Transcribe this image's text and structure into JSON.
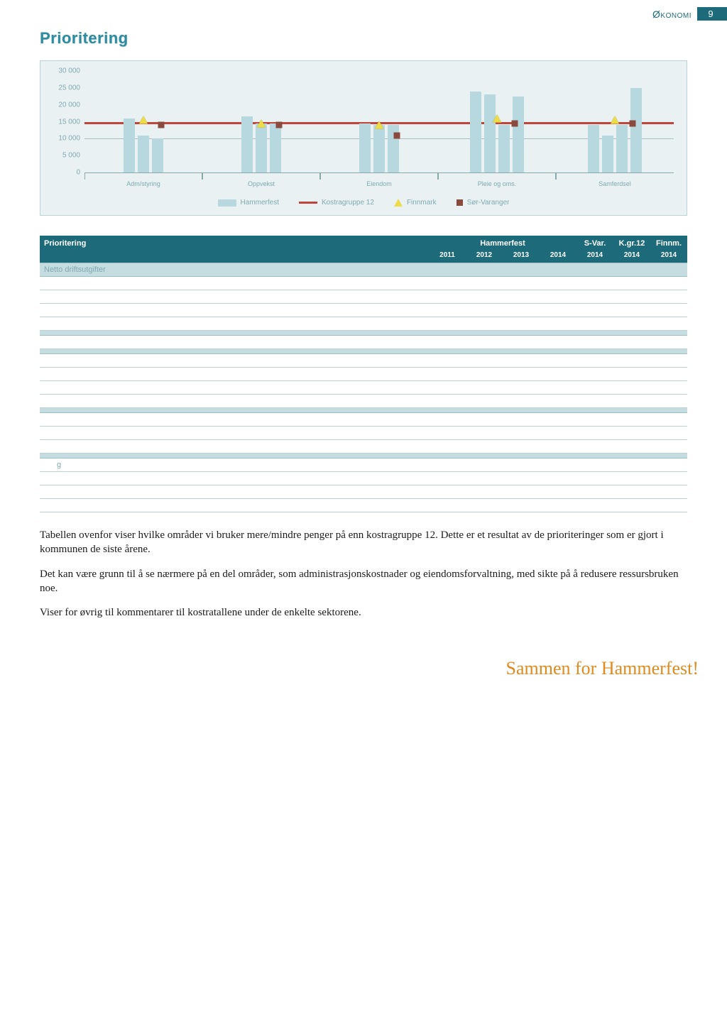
{
  "header": {
    "section": "Økonomi",
    "page_number": "9"
  },
  "title": "Prioritering",
  "chart": {
    "type": "grouped-bar",
    "background_color": "#e9f1f3",
    "plot_border_color": "#8aa8ad",
    "bar_color": "#b7d8de",
    "ref_line_color": "#c1453b",
    "triangle_color": "#eedc47",
    "square_color": "#8a4a3d",
    "ylim": [
      0,
      30000
    ],
    "yticks": [
      0,
      5000,
      10000,
      15000,
      20000,
      25000,
      30000
    ],
    "gridlines_at": [
      10000,
      15000
    ],
    "ref_line_value": 15000,
    "categories": [
      "Adm/styring",
      "Oppvekst",
      "Eiendom",
      "Pleie og oms.",
      "Samferdsel"
    ],
    "groups": [
      {
        "bars": [
          16000,
          11000,
          10000
        ],
        "tri": 15500,
        "sq": 14000
      },
      {
        "bars": [
          16500,
          14500,
          14500
        ],
        "tri": 14500,
        "sq": 14000
      },
      {
        "bars": [
          14500,
          14000,
          14000
        ],
        "tri": 14000,
        "sq": 11000
      },
      {
        "bars": [
          24000,
          23000,
          14000,
          22500
        ],
        "tri": 16000,
        "sq": 14500
      },
      {
        "bars": [
          14000,
          11000,
          14000,
          25000
        ],
        "tri": 15500,
        "sq": 14500
      }
    ],
    "legend": [
      {
        "label": "Hammerfest",
        "swatch": "bar"
      },
      {
        "label": "Kostragruppe 12",
        "swatch": "line"
      },
      {
        "label": "Finnmark",
        "swatch": "tri"
      },
      {
        "label": "Sør-Varanger",
        "swatch": "sq"
      }
    ]
  },
  "table": {
    "title": "Prioritering",
    "group_header": "Hammerfest",
    "year_cols": [
      "2011",
      "2012",
      "2013",
      "2014",
      "2014",
      "2014",
      "2014"
    ],
    "extra_cols": [
      "S-Var.",
      "K.gr.12",
      "Finnm."
    ],
    "sections": [
      {
        "name": "Netto driftsutgifter",
        "rows": [
          {
            "label": "",
            "vals": [
              "",
              "",
              "",
              "",
              "",
              "",
              ""
            ]
          },
          {
            "label": "",
            "vals": [
              "",
              "",
              "",
              "",
              "",
              "",
              ""
            ]
          },
          {
            "label": "",
            "vals": [
              "",
              "",
              "",
              "",
              "",
              "",
              ""
            ]
          },
          {
            "label": "",
            "vals": [
              "",
              "",
              "",
              "",
              "",
              "",
              ""
            ]
          }
        ]
      },
      {
        "name": "",
        "rows": [
          {
            "label": "",
            "vals": [
              "",
              "",
              "",
              "",
              "",
              "",
              ""
            ]
          }
        ]
      },
      {
        "name": "",
        "rows": [
          {
            "label": "",
            "vals": [
              "",
              "",
              "",
              "",
              "",
              "",
              ""
            ]
          },
          {
            "label": "",
            "vals": [
              "",
              "",
              "",
              "",
              "",
              "",
              ""
            ]
          },
          {
            "label": "",
            "vals": [
              "",
              "",
              "",
              "",
              "",
              "",
              ""
            ]
          },
          {
            "label": "",
            "vals": [
              "",
              "",
              "",
              "",
              "",
              "",
              ""
            ]
          }
        ]
      },
      {
        "name": "",
        "rows": [
          {
            "label": "",
            "vals": [
              "",
              "",
              "",
              "",
              "",
              "",
              ""
            ]
          },
          {
            "label": "",
            "vals": [
              "",
              "",
              "",
              "",
              "",
              "",
              ""
            ]
          },
          {
            "label": "",
            "vals": [
              "",
              "",
              "",
              "",
              "",
              "",
              ""
            ]
          }
        ]
      },
      {
        "name": "",
        "rows": [
          {
            "label": "g",
            "vals": [
              "",
              "",
              "",
              "",
              "",
              "",
              ""
            ]
          },
          {
            "label": "",
            "vals": [
              "",
              "",
              "",
              "",
              "",
              "",
              ""
            ]
          },
          {
            "label": "",
            "vals": [
              "",
              "",
              "",
              "",
              "",
              "",
              ""
            ]
          },
          {
            "label": "",
            "vals": [
              "",
              "",
              "",
              "",
              "",
              "",
              ""
            ]
          }
        ]
      }
    ]
  },
  "paragraphs": [
    "Tabellen ovenfor viser hvilke områder vi bruker mere/mindre penger på enn kostragruppe 12. Dette er et resultat av de prioriteringer som er gjort i kommunen de siste årene.",
    "Det kan være grunn til å se nærmere på en del områder, som administrasjonskostnader og eiendomsforvaltning, med sikte på å redusere ressursbruken noe.",
    "Viser for øvrig til kommentarer til kostratallene under de enkelte sektorene."
  ],
  "footer": "Sammen for Hammerfest!"
}
